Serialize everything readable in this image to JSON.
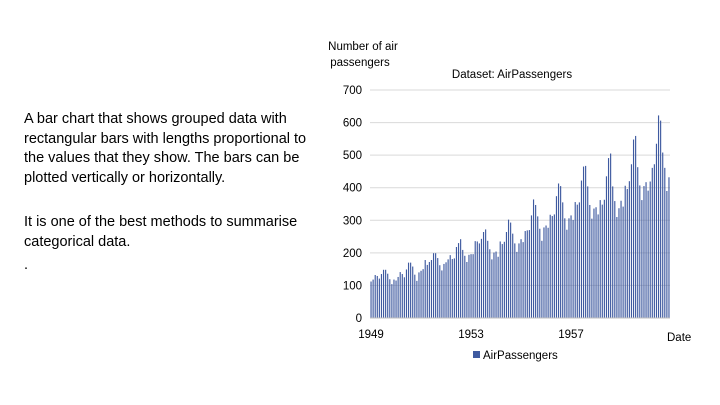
{
  "slide": {
    "paragraphs": [
      "A bar chart that shows grouped data with rectangular bars with lengths proportional to the values that they show. The bars can be plotted vertically or horizontally.",
      "It is one of the best methods to summarise categorical data.",
      "."
    ]
  },
  "colors": {
    "bar": "#3f5aa0",
    "grid": "#d9d9d9",
    "axis": "#bfbfbf"
  },
  "chart_data": {
    "type": "bar",
    "title": "Dataset: AirPassengers",
    "ylabel_lines": [
      "Number of air",
      "passengers"
    ],
    "xlabel": "Date",
    "ylim": [
      0,
      700
    ],
    "yticks": [
      "0",
      "100",
      "200",
      "300",
      "400",
      "500",
      "600",
      "700"
    ],
    "xtick_labels": [
      {
        "label": "1949",
        "index": 0
      },
      {
        "label": "1953",
        "index": 48
      },
      {
        "label": "1957",
        "index": 96
      }
    ],
    "legend": "AirPassengers",
    "legend_position": "bottom",
    "grid": true,
    "series": [
      {
        "name": "AirPassengers",
        "values": [
          112,
          118,
          132,
          129,
          121,
          135,
          148,
          148,
          136,
          119,
          104,
          118,
          115,
          126,
          141,
          135,
          125,
          149,
          170,
          170,
          158,
          133,
          114,
          140,
          145,
          150,
          178,
          163,
          172,
          178,
          199,
          199,
          184,
          162,
          146,
          166,
          171,
          180,
          193,
          181,
          183,
          218,
          230,
          242,
          209,
          191,
          172,
          194,
          196,
          196,
          236,
          235,
          229,
          243,
          264,
          272,
          237,
          211,
          180,
          201,
          204,
          188,
          235,
          227,
          234,
          264,
          302,
          293,
          259,
          229,
          203,
          229,
          242,
          233,
          267,
          269,
          270,
          315,
          364,
          347,
          312,
          274,
          237,
          278,
          284,
          277,
          317,
          313,
          318,
          374,
          413,
          405,
          355,
          306,
          271,
          306,
          315,
          301,
          356,
          348,
          355,
          422,
          465,
          467,
          404,
          347,
          305,
          336,
          340,
          318,
          362,
          348,
          363,
          435,
          491,
          505,
          404,
          359,
          310,
          337,
          360,
          342,
          406,
          396,
          420,
          472,
          548,
          559,
          463,
          407,
          362,
          405,
          417,
          391,
          419,
          461,
          472,
          535,
          622,
          606,
          508,
          461,
          390,
          432
        ]
      }
    ]
  }
}
